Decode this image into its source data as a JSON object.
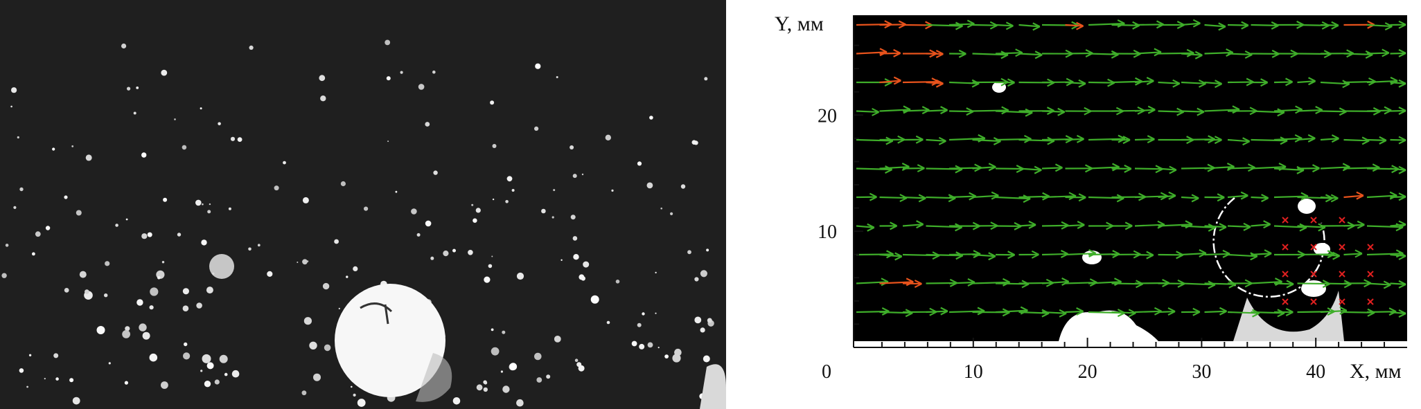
{
  "left_panel": {
    "kind": "particle-image-photo",
    "background_color": "#1f1f1f"
  },
  "right_panel": {
    "y_axis_label": "Y, мм",
    "x_axis_label": "X, мм",
    "origin_label": "0",
    "x_ticks": [
      10,
      20,
      30,
      40
    ],
    "y_ticks": [
      10,
      20
    ],
    "x_range": [
      0,
      48
    ],
    "y_range": [
      0,
      28
    ],
    "colors": {
      "field_background": "#000000",
      "vector_normal": "#3fae2a",
      "vector_highlight": "#e8531c",
      "marker": "#e02020"
    }
  }
}
